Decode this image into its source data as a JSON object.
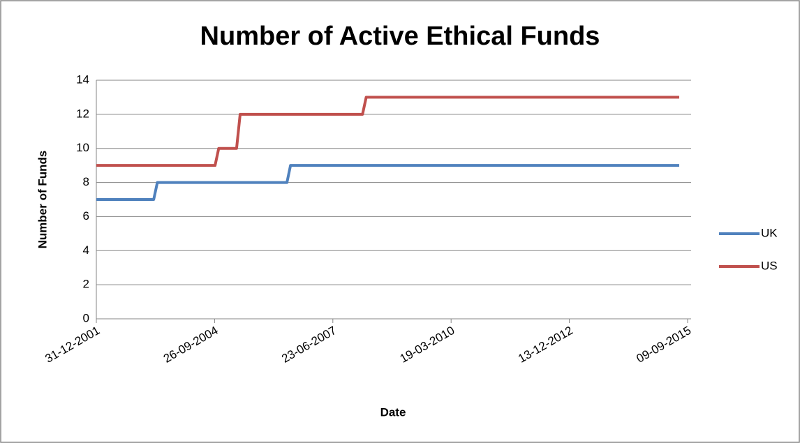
{
  "chart_data": {
    "type": "line",
    "title": "Number of Active Ethical Funds",
    "xlabel": "Date",
    "ylabel": "Number of Funds",
    "xlim": [
      "31-12-2001",
      "09-09-2015"
    ],
    "xticks": [
      "31-12-2001",
      "26-09-2004",
      "23-06-2007",
      "19-03-2010",
      "13-12-2012",
      "09-09-2015"
    ],
    "ylim": [
      0,
      14
    ],
    "yticks": [
      0,
      2,
      4,
      6,
      8,
      10,
      12,
      14
    ],
    "grid": true,
    "legend": "right",
    "series": [
      {
        "name": "UK",
        "color": "#4f81bd",
        "x": [
          "31-12-2001",
          "30-04-2003",
          "31-05-2003",
          "31-05-2006",
          "30-06-2006",
          "30-06-2015"
        ],
        "values": [
          7,
          7,
          8,
          8,
          9,
          9
        ]
      },
      {
        "name": "US",
        "color": "#c0504d",
        "x": [
          "31-12-2001",
          "30-09-2004",
          "31-10-2004",
          "31-03-2005",
          "30-04-2005",
          "29-02-2008",
          "31-03-2008",
          "30-06-2015"
        ],
        "values": [
          9,
          9,
          10,
          10,
          12,
          12,
          13,
          13
        ]
      }
    ]
  }
}
